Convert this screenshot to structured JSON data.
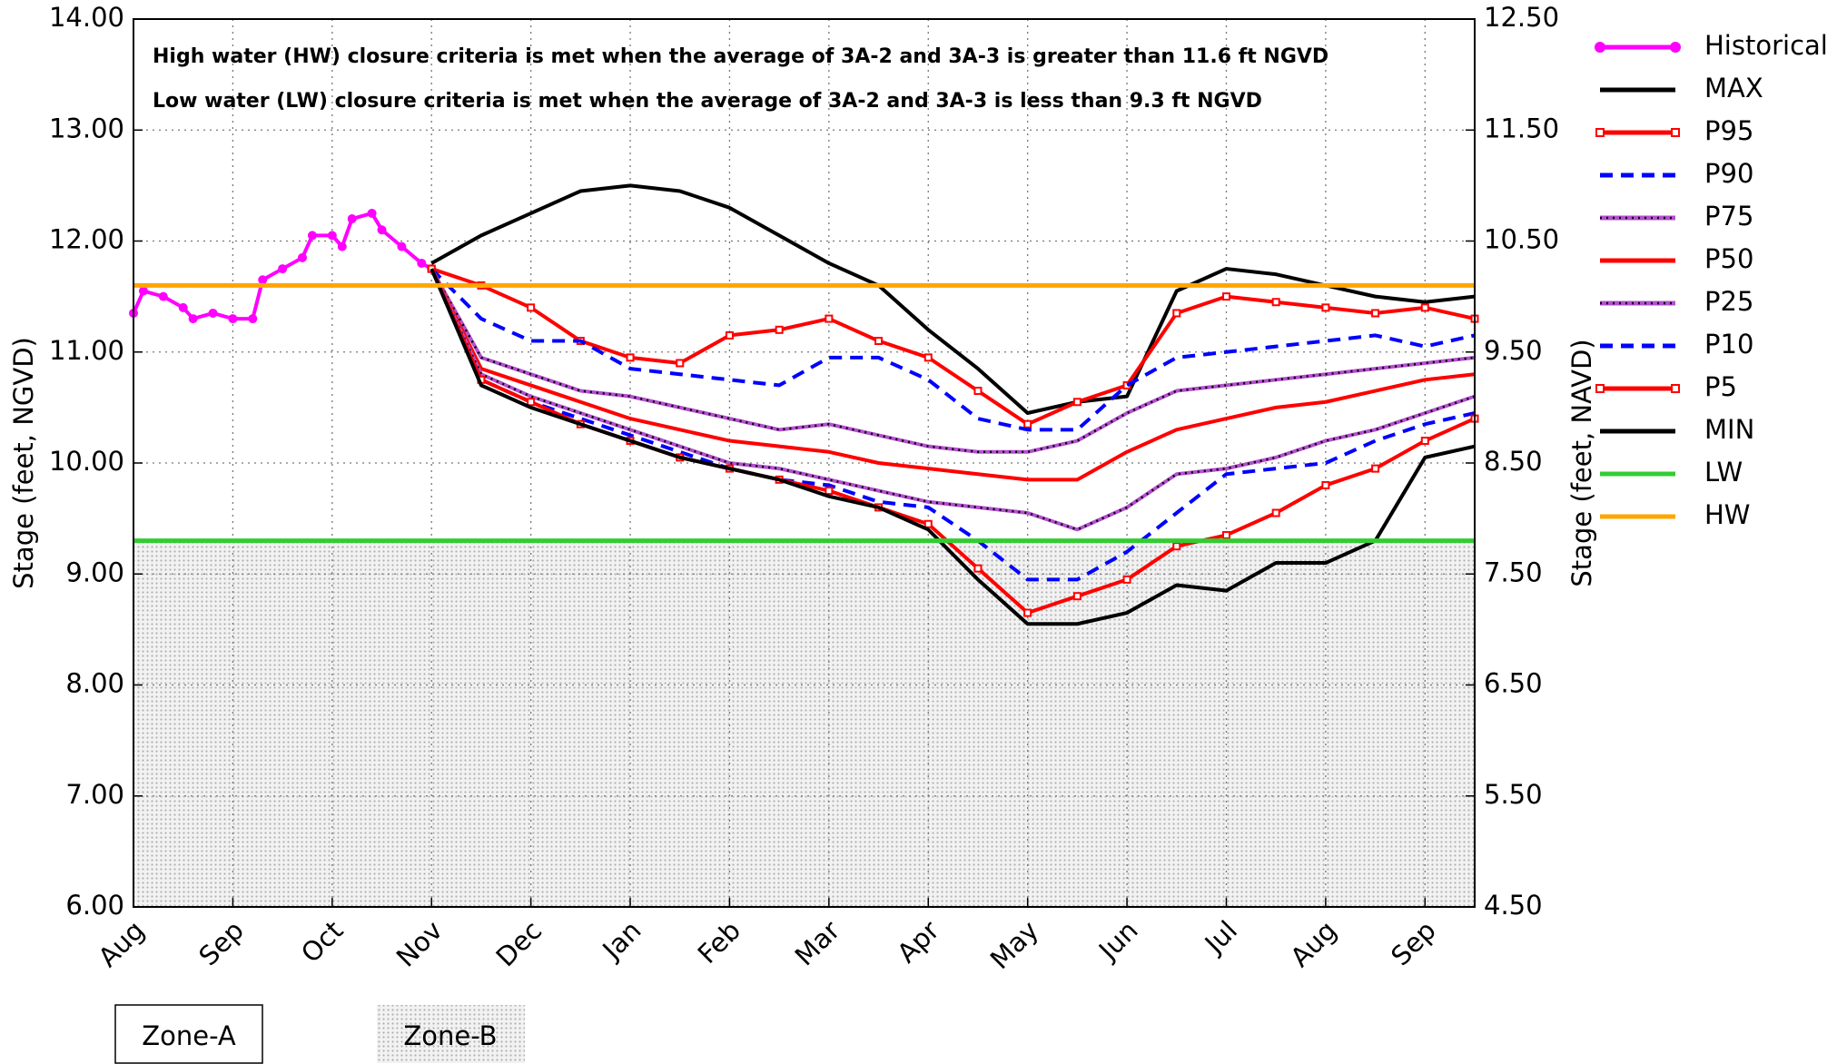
{
  "chart_data": {
    "type": "line",
    "annotations": [
      "High water (HW) closure criteria is met when the average of 3A-2 and 3A-3 is greater than 11.6 ft NGVD",
      "Low water (LW) closure criteria is met when the average of 3A-2 and 3A-3 is less than 9.3 ft NGVD"
    ],
    "ylabel": "Stage (feet, NGVD)",
    "y2label": "Stage (feet, NAVD)",
    "xlim": [
      0,
      13.5
    ],
    "xticks": [
      {
        "value": 0,
        "label": "Aug"
      },
      {
        "value": 1,
        "label": "Sep"
      },
      {
        "value": 2,
        "label": "Oct"
      },
      {
        "value": 3,
        "label": "Nov"
      },
      {
        "value": 4,
        "label": "Dec"
      },
      {
        "value": 5,
        "label": "Jan"
      },
      {
        "value": 6,
        "label": "Feb"
      },
      {
        "value": 7,
        "label": "Mar"
      },
      {
        "value": 8,
        "label": "Apr"
      },
      {
        "value": 9,
        "label": "May"
      },
      {
        "value": 10,
        "label": "Jun"
      },
      {
        "value": 11,
        "label": "Jul"
      },
      {
        "value": 12,
        "label": "Aug"
      },
      {
        "value": 13,
        "label": "Sep"
      }
    ],
    "ylim": [
      6,
      14
    ],
    "yticks": [
      {
        "value": 14,
        "label": "14.00"
      },
      {
        "value": 13,
        "label": "13.00"
      },
      {
        "value": 12,
        "label": "12.00"
      },
      {
        "value": 11,
        "label": "11.00"
      },
      {
        "value": 10,
        "label": "10.00"
      },
      {
        "value": 9,
        "label": "9.00"
      },
      {
        "value": 8,
        "label": "8.00"
      },
      {
        "value": 7,
        "label": "7.00"
      },
      {
        "value": 6,
        "label": "6.00"
      }
    ],
    "y2lim": [
      4.5,
      12.5
    ],
    "y2ticks": [
      {
        "value": 12.5,
        "label": "12.50"
      },
      {
        "value": 11.5,
        "label": "11.50"
      },
      {
        "value": 10.5,
        "label": "10.50"
      },
      {
        "value": 9.5,
        "label": "9.50"
      },
      {
        "value": 8.5,
        "label": "8.50"
      },
      {
        "value": 7.5,
        "label": "7.50"
      },
      {
        "value": 6.5,
        "label": "6.50"
      },
      {
        "value": 5.5,
        "label": "5.50"
      },
      {
        "value": 4.5,
        "label": "4.50"
      }
    ],
    "grid": true,
    "legend": "right",
    "zones": [
      {
        "label": "Zone-A"
      },
      {
        "label": "Zone-B",
        "range": [
          6,
          9.3
        ]
      }
    ],
    "series": [
      {
        "name": "Historical",
        "color": "#ff00ff",
        "marker": "circle",
        "x": [
          0,
          0.1,
          0.3,
          0.5,
          0.6,
          0.8,
          1.0,
          1.2,
          1.3,
          1.5,
          1.7,
          1.8,
          2.0,
          2.1,
          2.2,
          2.4,
          2.5,
          2.7,
          2.9,
          3.0
        ],
        "values": [
          11.35,
          11.55,
          11.5,
          11.4,
          11.3,
          11.35,
          11.3,
          11.3,
          11.65,
          11.75,
          11.85,
          12.05,
          12.05,
          11.95,
          12.2,
          12.25,
          12.1,
          11.95,
          11.8,
          11.75
        ]
      },
      {
        "name": "MAX",
        "color": "#000000",
        "x": [
          3,
          3.5,
          4,
          4.5,
          5,
          5.5,
          6,
          6.5,
          7,
          7.5,
          8,
          8.5,
          9,
          9.5,
          10,
          10.5,
          11,
          11.5,
          12,
          12.5,
          13,
          13.5
        ],
        "values": [
          11.8,
          12.05,
          12.25,
          12.45,
          12.5,
          12.45,
          12.3,
          12.05,
          11.8,
          11.6,
          11.2,
          10.85,
          10.45,
          10.55,
          10.6,
          11.55,
          11.75,
          11.7,
          11.6,
          11.5,
          11.45,
          11.5
        ]
      },
      {
        "name": "P95",
        "color": "#ff0000",
        "marker": "square",
        "x": [
          3,
          3.5,
          4,
          4.5,
          5,
          5.5,
          6,
          6.5,
          7,
          7.5,
          8,
          8.5,
          9,
          9.5,
          10,
          10.5,
          11,
          11.5,
          12,
          12.5,
          13,
          13.5
        ],
        "values": [
          11.75,
          11.6,
          11.4,
          11.1,
          10.95,
          10.9,
          11.15,
          11.2,
          11.3,
          11.1,
          10.95,
          10.65,
          10.35,
          10.55,
          10.7,
          11.35,
          11.5,
          11.45,
          11.4,
          11.35,
          11.4,
          11.3
        ]
      },
      {
        "name": "P90",
        "color": "#0000ff",
        "dash": true,
        "x": [
          3,
          3.5,
          4,
          4.5,
          5,
          5.5,
          6,
          6.5,
          7,
          7.5,
          8,
          8.5,
          9,
          9.5,
          10,
          10.5,
          11,
          11.5,
          12,
          12.5,
          13,
          13.5
        ],
        "values": [
          11.75,
          11.3,
          11.1,
          11.1,
          10.85,
          10.8,
          10.75,
          10.7,
          10.95,
          10.95,
          10.75,
          10.4,
          10.3,
          10.3,
          10.7,
          10.95,
          11.0,
          11.05,
          11.1,
          11.15,
          11.05,
          11.15
        ]
      },
      {
        "name": "P75",
        "color": "#b44fd0",
        "dotted": true,
        "x": [
          3,
          3.5,
          4,
          4.5,
          5,
          5.5,
          6,
          6.5,
          7,
          7.5,
          8,
          8.5,
          9,
          9.5,
          10,
          10.5,
          11,
          11.5,
          12,
          12.5,
          13,
          13.5
        ],
        "values": [
          11.75,
          10.95,
          10.8,
          10.65,
          10.6,
          10.5,
          10.4,
          10.3,
          10.35,
          10.25,
          10.15,
          10.1,
          10.1,
          10.2,
          10.45,
          10.65,
          10.7,
          10.75,
          10.8,
          10.85,
          10.9,
          10.95
        ]
      },
      {
        "name": "P50",
        "color": "#ff0000",
        "x": [
          3,
          3.5,
          4,
          4.5,
          5,
          5.5,
          6,
          6.5,
          7,
          7.5,
          8,
          8.5,
          9,
          9.5,
          10,
          10.5,
          11,
          11.5,
          12,
          12.5,
          13,
          13.5
        ],
        "values": [
          11.75,
          10.85,
          10.7,
          10.55,
          10.4,
          10.3,
          10.2,
          10.15,
          10.1,
          10.0,
          9.95,
          9.9,
          9.85,
          9.85,
          10.1,
          10.3,
          10.4,
          10.5,
          10.55,
          10.65,
          10.75,
          10.8
        ]
      },
      {
        "name": "P25",
        "color": "#b44fd0",
        "dotted": true,
        "x": [
          3,
          3.5,
          4,
          4.5,
          5,
          5.5,
          6,
          6.5,
          7,
          7.5,
          8,
          8.5,
          9,
          9.5,
          10,
          10.5,
          11,
          11.5,
          12,
          12.5,
          13,
          13.5
        ],
        "values": [
          11.75,
          10.8,
          10.6,
          10.45,
          10.3,
          10.15,
          10.0,
          9.95,
          9.85,
          9.75,
          9.65,
          9.6,
          9.55,
          9.4,
          9.6,
          9.9,
          9.95,
          10.05,
          10.2,
          10.3,
          10.45,
          10.6
        ]
      },
      {
        "name": "P10",
        "color": "#0000ff",
        "dash": true,
        "x": [
          3,
          3.5,
          4,
          4.5,
          5,
          5.5,
          6,
          6.5,
          7,
          7.5,
          8,
          8.5,
          9,
          9.5,
          10,
          10.5,
          11,
          11.5,
          12,
          12.5,
          13,
          13.5
        ],
        "values": [
          11.75,
          10.75,
          10.55,
          10.4,
          10.25,
          10.1,
          9.95,
          9.85,
          9.8,
          9.65,
          9.6,
          9.3,
          8.95,
          8.95,
          9.2,
          9.55,
          9.9,
          9.95,
          10.0,
          10.2,
          10.35,
          10.45
        ]
      },
      {
        "name": "P5",
        "color": "#ff0000",
        "marker": "square",
        "x": [
          3,
          3.5,
          4,
          4.5,
          5,
          5.5,
          6,
          6.5,
          7,
          7.5,
          8,
          8.5,
          9,
          9.5,
          10,
          10.5,
          11,
          11.5,
          12,
          12.5,
          13,
          13.5
        ],
        "values": [
          11.75,
          10.75,
          10.55,
          10.35,
          10.2,
          10.05,
          9.95,
          9.85,
          9.75,
          9.6,
          9.45,
          9.05,
          8.65,
          8.8,
          8.95,
          9.25,
          9.35,
          9.55,
          9.8,
          9.95,
          10.2,
          10.4
        ]
      },
      {
        "name": "MIN",
        "color": "#000000",
        "x": [
          3,
          3.5,
          4,
          4.5,
          5,
          5.5,
          6,
          6.5,
          7,
          7.5,
          8,
          8.5,
          9,
          9.5,
          10,
          10.5,
          11,
          11.5,
          12,
          12.5,
          13,
          13.5
        ],
        "values": [
          11.75,
          10.7,
          10.5,
          10.35,
          10.2,
          10.05,
          9.95,
          9.85,
          9.7,
          9.6,
          9.4,
          8.95,
          8.55,
          8.55,
          8.65,
          8.9,
          8.85,
          9.1,
          9.1,
          9.3,
          10.05,
          10.15
        ]
      },
      {
        "name": "LW",
        "color": "#33cc33",
        "x": [
          0,
          13.5
        ],
        "values": [
          9.3,
          9.3
        ]
      },
      {
        "name": "HW",
        "color": "#ffa500",
        "x": [
          0,
          13.5
        ],
        "values": [
          11.6,
          11.6
        ]
      }
    ]
  }
}
